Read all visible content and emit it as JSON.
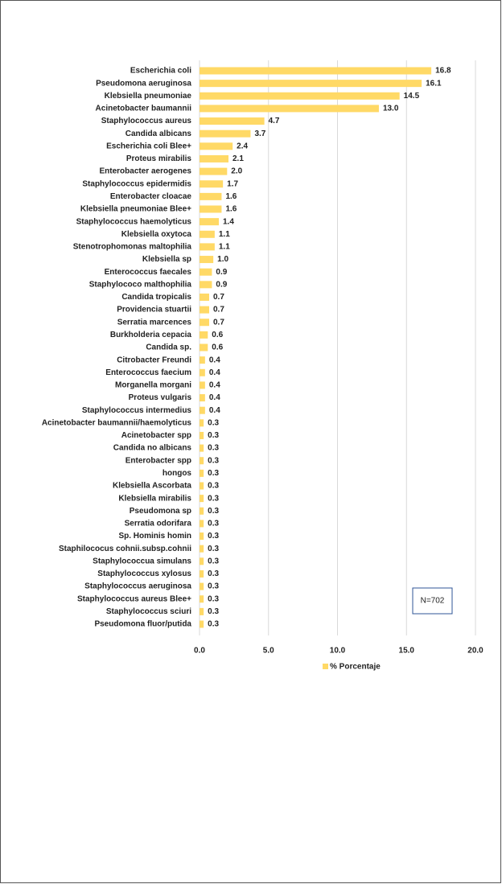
{
  "chart_data": {
    "type": "bar",
    "orientation": "horizontal",
    "categories": [
      "Escherichia coli",
      "Pseudomona aeruginosa",
      "Klebsiella pneumoniae",
      "Acinetobacter baumannii",
      "Staphylococcus aureus",
      "Candida albicans",
      "Escherichia coli Blee+",
      "Proteus mirabilis",
      "Enterobacter aerogenes",
      "Staphylococcus epidermidis",
      "Enterobacter cloacae",
      "Klebsiella pneumoniae Blee+",
      "Staphylococcus haemolyticus",
      "Klebsiella oxytoca",
      "Stenotrophomonas maltophilia",
      "Klebsiella sp",
      "Enterococcus faecales",
      "Staphylococo malthophilia",
      "Candida tropicalis",
      "Providencia stuartii",
      "Serratia marcences",
      "Burkholderia cepacia",
      "Candida sp.",
      "Citrobacter Freundi",
      "Enterococcus faecium",
      "Morganella morgani",
      "Proteus vulgaris",
      "Staphylococcus intermedius",
      "Acinetobacter baumannii/haemolyticus",
      "Acinetobacter spp",
      "Candida no albicans",
      "Enterobacter spp",
      "hongos",
      "Klebsiella Ascorbata",
      "Klebsiella mirabilis",
      "Pseudomona sp",
      "Serratia odorifara",
      "Sp. Hominis homin",
      "Staphilococus cohnii.subsp.cohnii",
      "Staphylococcua simulans",
      "Staphylococcus xylosus",
      "Staphylococcus aeruginosa",
      "Staphylococcus aureus Blee+",
      "Staphylococcus sciuri",
      "Pseudomona fluor/putida"
    ],
    "series": [
      {
        "name": "% Porcentaje",
        "color": "#ffd966",
        "values": [
          16.8,
          16.1,
          14.5,
          13.0,
          4.7,
          3.7,
          2.4,
          2.1,
          2.0,
          1.7,
          1.6,
          1.6,
          1.4,
          1.1,
          1.1,
          1.0,
          0.9,
          0.9,
          0.7,
          0.7,
          0.7,
          0.6,
          0.6,
          0.4,
          0.4,
          0.4,
          0.4,
          0.4,
          0.3,
          0.3,
          0.3,
          0.3,
          0.3,
          0.3,
          0.3,
          0.3,
          0.3,
          0.3,
          0.3,
          0.3,
          0.3,
          0.3,
          0.3,
          0.3,
          0.3
        ],
        "value_labels": [
          "16.8",
          "16.1",
          "14.5",
          "13.0",
          "4.7",
          "3.7",
          "2.4",
          "2.1",
          "2.0",
          "1.7",
          "1.6",
          "1.6",
          "1.4",
          "1.1",
          "1.1",
          "1.0",
          "0.9",
          "0.9",
          "0.7",
          "0.7",
          "0.7",
          "0.6",
          "0.6",
          "0.4",
          "0.4",
          "0.4",
          "0.4",
          "0.4",
          "0.3",
          "0.3",
          "0.3",
          "0.3",
          "0.3",
          "0.3",
          "0.3",
          "0.3",
          "0.3",
          "0.3",
          "0.3",
          "0.3",
          "0.3",
          "0.3",
          "0.3",
          "0.3",
          "0.3"
        ]
      }
    ],
    "xlim": [
      0,
      20
    ],
    "xticks": [
      {
        "value": 0,
        "label": "0.0"
      },
      {
        "value": 5,
        "label": "5.0"
      },
      {
        "value": 10,
        "label": "10.0"
      },
      {
        "value": 15,
        "label": "15.0"
      },
      {
        "value": 20,
        "label": "20.0"
      }
    ],
    "grid": true,
    "legend": "bottom",
    "annotations": [
      "N=702"
    ]
  }
}
